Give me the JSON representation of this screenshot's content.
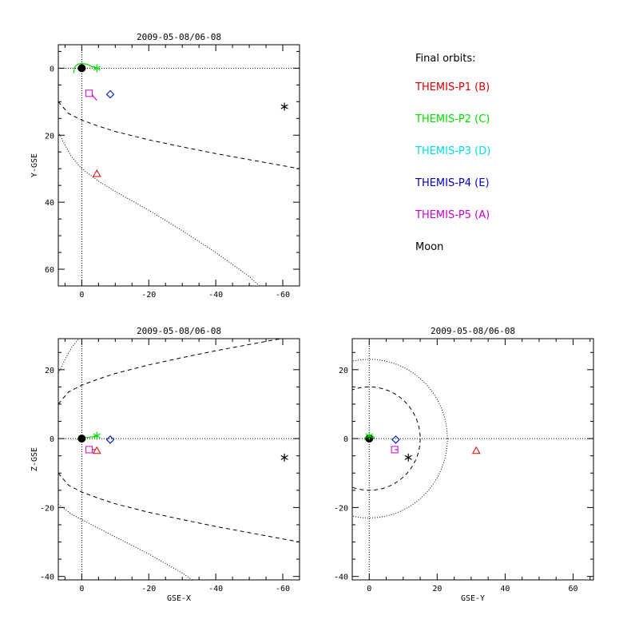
{
  "legend": {
    "title": "Final orbits:",
    "items": [
      {
        "label": "THEMIS-P1 (B)",
        "color": "#dd0000"
      },
      {
        "label": "THEMIS-P2 (C)",
        "color": "#00dd00"
      },
      {
        "label": "THEMIS-P3 (D)",
        "color": "#00dddd"
      },
      {
        "label": "THEMIS-P4 (E)",
        "color": "#0000cc"
      },
      {
        "label": "THEMIS-P5 (A)",
        "color": "#cc00cc"
      },
      {
        "label": "Moon",
        "color": "#000000"
      }
    ]
  },
  "chart_data": [
    {
      "type": "scatter",
      "title": "2009-05-08/06-08",
      "xlabel": "",
      "ylabel": "Y-GSE",
      "xlim": [
        7,
        -65
      ],
      "ylim": [
        65,
        -7
      ],
      "xticks": [
        0,
        -20,
        -40,
        -60
      ],
      "yticks": [
        0,
        20,
        40,
        60
      ],
      "grid": false,
      "reference_lines": {
        "x0": true,
        "y0": true
      },
      "earth": {
        "x": 0,
        "y": 0
      },
      "boundaries": [
        {
          "name": "magnetopause",
          "style": "dashed",
          "x": [
            7,
            4,
            0,
            -5,
            -10,
            -20,
            -30,
            -40,
            -50,
            -60,
            -65
          ],
          "y": [
            10,
            13.5,
            15.5,
            17.3,
            18.9,
            21.4,
            23.5,
            25.5,
            27.3,
            29.1,
            30
          ]
        },
        {
          "name": "bow shock",
          "style": "dotted",
          "x": [
            7,
            5,
            3,
            0,
            -5,
            -10,
            -20,
            -30,
            -40,
            -50,
            -53
          ],
          "y": [
            19,
            23,
            26.5,
            30,
            33.7,
            36.8,
            42.4,
            48.5,
            55,
            62.2,
            65
          ]
        }
      ],
      "orbits": [
        {
          "color": "#00dd00",
          "x": [
            2.5,
            2,
            1.2,
            0,
            -1.5,
            -3,
            -4.5,
            -5
          ],
          "y": [
            1.5,
            -0.5,
            -1.2,
            -1.4,
            -1.2,
            -0.5,
            0,
            0.3
          ]
        },
        {
          "color": "#cc00cc",
          "x": [
            -3,
            -3.8,
            -4.5
          ],
          "y": [
            7.8,
            8.8,
            9.6
          ]
        }
      ],
      "points": [
        {
          "series": "THEMIS-P1 (B)",
          "marker": "triangle",
          "x": -4.5,
          "y": 31.5
        },
        {
          "series": "THEMIS-P2 (C)",
          "marker": "asterisk",
          "x": -4.5,
          "y": 0
        },
        {
          "series": "THEMIS-P3 (D)",
          "marker": "diamond",
          "x": -8.5,
          "y": 7.8
        },
        {
          "series": "THEMIS-P4 (E)",
          "marker": "diamond",
          "x": -8.5,
          "y": 7.8
        },
        {
          "series": "THEMIS-P5 (A)",
          "marker": "square",
          "x": -2.2,
          "y": 7.5
        },
        {
          "series": "Moon",
          "marker": "asterisk",
          "x": -60.5,
          "y": 11.5
        }
      ]
    },
    {
      "type": "scatter",
      "title": "2009-05-08/06-08",
      "xlabel": "GSE-X",
      "ylabel": "Z-GSE",
      "xlim": [
        7,
        -65
      ],
      "ylim": [
        -41,
        29
      ],
      "xticks": [
        0,
        -20,
        -40,
        -60
      ],
      "yticks": [
        20,
        0,
        -20,
        -40
      ],
      "grid": false,
      "reference_lines": {
        "x0": true,
        "y0": true
      },
      "earth": {
        "x": 0,
        "y": 0
      },
      "boundaries": [
        {
          "name": "magnetopause north",
          "style": "dashed",
          "x": [
            7,
            4,
            0,
            -5,
            -10,
            -20,
            -30,
            -40,
            -50,
            -60,
            -65
          ],
          "y": [
            10,
            13.5,
            15.5,
            17.3,
            18.9,
            21.4,
            23.5,
            25.5,
            27.3,
            29.1,
            30
          ]
        },
        {
          "name": "magnetopause south",
          "style": "dashed",
          "x": [
            7,
            4,
            0,
            -5,
            -10,
            -20,
            -30,
            -40,
            -50,
            -60,
            -65
          ],
          "y": [
            -10,
            -13.5,
            -15.5,
            -17.3,
            -18.9,
            -21.4,
            -23.5,
            -25.5,
            -27.3,
            -29.1,
            -30
          ]
        },
        {
          "name": "bow shock north",
          "style": "dotted",
          "x": [
            7,
            5,
            3,
            0,
            -2
          ],
          "y": [
            19,
            23,
            26.5,
            30,
            32
          ]
        },
        {
          "name": "bow shock south",
          "style": "dotted",
          "x": [
            7,
            5,
            3,
            0,
            -5,
            -10,
            -20,
            -30,
            -33
          ],
          "y": [
            -19,
            -20.5,
            -22,
            -23.5,
            -26,
            -28.5,
            -33.5,
            -39,
            -41
          ]
        }
      ],
      "orbits": [
        {
          "color": "#00dd00",
          "x": [
            1.5,
            0.8,
            0,
            -1.5,
            -3,
            -4.5
          ],
          "y": [
            -0.3,
            0.4,
            0.5,
            0.3,
            0.5,
            0.9
          ]
        },
        {
          "color": "#cc00cc",
          "x": [
            -3,
            -4
          ],
          "y": [
            -3.2,
            -3.2
          ]
        }
      ],
      "points": [
        {
          "series": "THEMIS-P1 (B)",
          "marker": "triangle",
          "x": -4.5,
          "y": -3.5
        },
        {
          "series": "THEMIS-P2 (C)",
          "marker": "asterisk",
          "x": -4.5,
          "y": 0.8
        },
        {
          "series": "THEMIS-P3 (D)",
          "marker": "diamond",
          "x": -8.5,
          "y": -0.3
        },
        {
          "series": "THEMIS-P4 (E)",
          "marker": "diamond",
          "x": -8.5,
          "y": -0.3
        },
        {
          "series": "THEMIS-P5 (A)",
          "marker": "square",
          "x": -2.2,
          "y": -3.2
        },
        {
          "series": "Moon",
          "marker": "asterisk",
          "x": -60.5,
          "y": -5.5
        }
      ]
    },
    {
      "type": "scatter",
      "title": "2009-05-08/06-08",
      "xlabel": "GSE-Y",
      "ylabel": "",
      "xlim": [
        -5,
        66
      ],
      "ylim": [
        -41,
        29
      ],
      "xticks": [
        0,
        20,
        40,
        60
      ],
      "yticks": [
        20,
        0,
        -20,
        -40
      ],
      "grid": false,
      "reference_lines": {
        "x0": true,
        "y0": true
      },
      "earth": {
        "x": 0,
        "y": 0
      },
      "circles": [
        {
          "name": "magnetopause",
          "style": "dashed",
          "r": 15
        },
        {
          "name": "bow shock",
          "style": "dotted",
          "r": 23
        }
      ],
      "orbits": [
        {
          "color": "#00dd00",
          "x": [
            -1.5,
            -0.5,
            0.5,
            1.5,
            0.5,
            -0.8,
            -1.5
          ],
          "y": [
            0,
            0.8,
            1,
            0.3,
            -0.5,
            -0.6,
            0
          ]
        },
        {
          "color": "#cc00cc",
          "x": [
            7.5,
            8.5
          ],
          "y": [
            -3.2,
            -3.2
          ]
        }
      ],
      "points": [
        {
          "series": "THEMIS-P1 (B)",
          "marker": "triangle",
          "x": 31.5,
          "y": -3.5
        },
        {
          "series": "THEMIS-P2 (C)",
          "marker": "asterisk",
          "x": 0,
          "y": 0.8
        },
        {
          "series": "THEMIS-P3 (D)",
          "marker": "diamond",
          "x": 7.8,
          "y": -0.3
        },
        {
          "series": "THEMIS-P4 (E)",
          "marker": "diamond",
          "x": 7.8,
          "y": -0.3
        },
        {
          "series": "THEMIS-P5 (A)",
          "marker": "square",
          "x": 7.5,
          "y": -3.2
        },
        {
          "series": "Moon",
          "marker": "asterisk",
          "x": 11.5,
          "y": -5.5
        }
      ]
    }
  ]
}
